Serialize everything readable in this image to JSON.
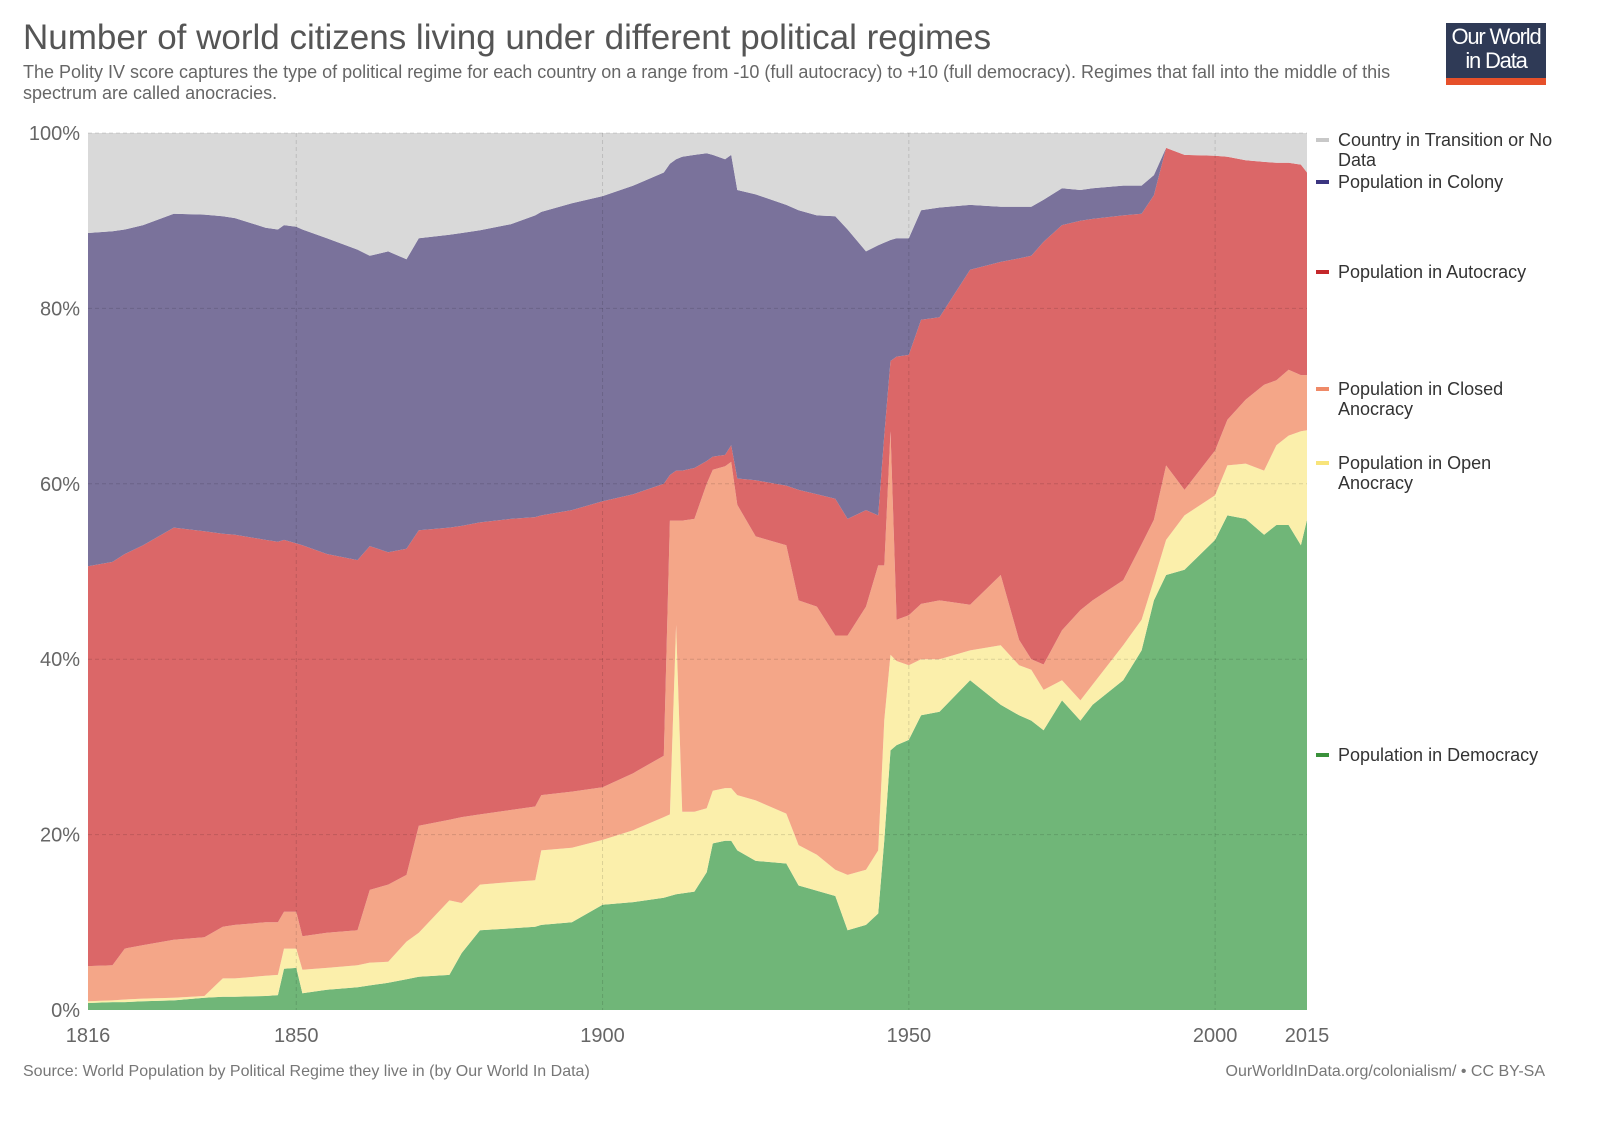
{
  "title": "Number of world citizens living under different political regimes",
  "subtitle": "The Polity IV score captures the type of political regime for each country on a range from -10 (full autocracy) to +10 (full democracy). Regimes that fall into the middle of this spectrum are called anocracies.",
  "logo": {
    "line1": "Our World",
    "line2": "in Data"
  },
  "footer": {
    "source": "Source: World Population by Political Regime they live in (by Our World In Data)",
    "credit": "OurWorldInData.org/colonialism/ • CC BY-SA"
  },
  "chart_data": {
    "type": "area",
    "stacked": true,
    "unit": "%",
    "xlim": [
      1816,
      2015
    ],
    "ylim": [
      0,
      100
    ],
    "x_ticks": [
      "1816",
      "1850",
      "1900",
      "1950",
      "2000",
      "2015"
    ],
    "y_ticks": [
      "0%",
      "20%",
      "40%",
      "60%",
      "80%",
      "100%"
    ],
    "grid": true,
    "legend_position": "right",
    "x": [
      1816,
      1820,
      1822,
      1825,
      1830,
      1835,
      1838,
      1840,
      1845,
      1847,
      1848,
      1850,
      1851,
      1855,
      1860,
      1862,
      1865,
      1868,
      1870,
      1875,
      1877,
      1880,
      1885,
      1889,
      1890,
      1895,
      1900,
      1905,
      1910,
      1911,
      1912,
      1913,
      1915,
      1917,
      1918,
      1920,
      1921,
      1922,
      1925,
      1930,
      1932,
      1935,
      1938,
      1940,
      1943,
      1945,
      1946,
      1947,
      1948,
      1950,
      1952,
      1955,
      1960,
      1965,
      1968,
      1970,
      1972,
      1975,
      1978,
      1980,
      1985,
      1988,
      1990,
      1992,
      1995,
      2000,
      2002,
      2005,
      2008,
      2010,
      2012,
      2014,
      2015
    ],
    "series": [
      {
        "name": "Population in Democracy",
        "color": "#70b678",
        "legend_color": "#3a913b",
        "values": [
          0.8,
          0.9,
          0.9,
          1.0,
          1.1,
          1.4,
          1.5,
          1.5,
          1.6,
          1.7,
          4.7,
          4.8,
          1.9,
          2.3,
          2.6,
          2.8,
          3.1,
          3.5,
          3.8,
          4.0,
          6.5,
          9.1,
          9.3,
          9.5,
          9.7,
          10.0,
          12.0,
          12.3,
          12.8,
          13.0,
          13.2,
          13.3,
          13.5,
          15.7,
          19.0,
          19.3,
          19.3,
          18.2,
          17.0,
          16.7,
          14.2,
          13.6,
          13.0,
          9.1,
          9.7,
          11.0,
          19.4,
          29.6,
          30.2,
          30.8,
          33.6,
          34.0,
          37.6,
          34.8,
          33.6,
          33.0,
          31.9,
          35.3,
          33.0,
          34.8,
          37.6,
          41.0,
          46.7,
          49.6,
          50.2,
          53.6,
          56.4,
          56.0,
          54.2,
          55.3,
          55.3,
          53.0,
          55.9
        ]
      },
      {
        "name": "Population in Open Anocracy",
        "color": "#fbefab",
        "legend_color": "#f8e47a",
        "values": [
          0.2,
          0.2,
          0.3,
          0.3,
          0.3,
          0.2,
          2.1,
          2.1,
          2.3,
          2.3,
          2.3,
          2.2,
          2.7,
          2.5,
          2.5,
          2.6,
          2.4,
          4.3,
          5.0,
          8.5,
          5.7,
          5.2,
          5.3,
          5.3,
          8.5,
          8.5,
          7.4,
          8.2,
          9.2,
          9.3,
          30.7,
          9.3,
          9.1,
          7.3,
          6.0,
          6.0,
          6.0,
          6.3,
          6.9,
          5.7,
          4.6,
          4.1,
          3.0,
          6.3,
          6.3,
          7.2,
          13.7,
          10.9,
          9.6,
          8.5,
          6.4,
          6.0,
          3.4,
          6.8,
          5.7,
          5.8,
          4.6,
          2.3,
          2.3,
          2.3,
          4.0,
          3.5,
          2.3,
          4.0,
          6.2,
          5.1,
          5.7,
          6.3,
          7.3,
          9.1,
          10.2,
          13.0,
          10.2
        ]
      },
      {
        "name": "Population in Closed Anocracy",
        "color": "#f4a688",
        "legend_color": "#ef8a68",
        "values": [
          4.0,
          4.0,
          5.8,
          6.1,
          6.6,
          6.7,
          5.9,
          6.1,
          6.1,
          6.0,
          4.2,
          4.2,
          3.8,
          4.0,
          4.0,
          8.3,
          8.8,
          7.6,
          12.2,
          9.2,
          9.8,
          8.0,
          8.2,
          8.4,
          6.3,
          6.4,
          6.0,
          6.5,
          7.0,
          33.5,
          11.9,
          33.2,
          33.4,
          37.0,
          36.6,
          36.7,
          37.2,
          33.1,
          30.1,
          30.6,
          27.9,
          28.3,
          26.7,
          27.3,
          30.0,
          32.5,
          17.6,
          25.5,
          4.7,
          5.7,
          6.3,
          6.7,
          5.2,
          8.0,
          2.9,
          1.2,
          2.9,
          5.7,
          10.3,
          9.6,
          7.4,
          8.6,
          6.9,
          8.5,
          2.9,
          5.1,
          5.2,
          7.3,
          9.8,
          7.4,
          7.5,
          6.4,
          6.3
        ]
      },
      {
        "name": "Population in Autocracy",
        "color": "#db6768",
        "legend_color": "#c4282b",
        "values": [
          45.6,
          46.0,
          45.0,
          45.6,
          47.0,
          46.3,
          44.8,
          44.5,
          43.6,
          43.4,
          42.4,
          42.0,
          44.6,
          43.2,
          42.2,
          39.2,
          37.9,
          37.2,
          33.7,
          33.3,
          33.2,
          33.3,
          33.2,
          33.0,
          31.9,
          32.1,
          32.6,
          31.8,
          31.0,
          5.2,
          5.7,
          5.7,
          5.8,
          2.6,
          1.5,
          1.3,
          1.9,
          3.0,
          6.4,
          6.8,
          12.6,
          12.8,
          15.6,
          13.3,
          11.0,
          5.7,
          14.9,
          8.0,
          30.0,
          29.7,
          32.4,
          32.3,
          38.2,
          35.7,
          43.5,
          46.0,
          48.2,
          46.2,
          44.4,
          43.5,
          41.6,
          37.7,
          37.0,
          36.2,
          38.2,
          33.6,
          30.0,
          27.3,
          25.4,
          24.8,
          23.6,
          24.0,
          23.1
        ]
      },
      {
        "name": "Population in Colony",
        "color": "#7a729b",
        "legend_color": "#3b3580",
        "values": [
          38.0,
          37.7,
          37.0,
          36.5,
          35.8,
          36.1,
          36.2,
          36.1,
          35.6,
          35.6,
          35.9,
          36.1,
          36.0,
          36.0,
          35.4,
          33.1,
          34.3,
          33.0,
          33.3,
          33.4,
          33.4,
          33.3,
          33.6,
          34.4,
          34.6,
          35.0,
          34.8,
          35.2,
          35.5,
          35.5,
          35.5,
          35.8,
          35.7,
          35.1,
          34.4,
          33.7,
          33.1,
          32.9,
          32.6,
          32.0,
          31.9,
          31.8,
          32.2,
          33.0,
          29.5,
          30.8,
          21.9,
          13.8,
          13.5,
          13.3,
          12.5,
          12.5,
          7.4,
          6.3,
          5.9,
          5.6,
          4.8,
          4.2,
          3.5,
          3.5,
          3.4,
          3.2,
          2.3,
          0,
          0,
          0,
          0,
          0,
          0,
          0,
          0,
          0,
          0
        ]
      },
      {
        "name": "Country in Transition or No Data",
        "color": "#d9d9d9",
        "legend_color": "#c8c8c8",
        "values": [
          11.4,
          11.2,
          11.0,
          10.5,
          9.2,
          9.3,
          9.5,
          9.7,
          10.8,
          11.0,
          10.5,
          10.7,
          11.0,
          12.0,
          13.3,
          14.0,
          13.5,
          14.4,
          12.0,
          11.6,
          11.4,
          11.1,
          10.4,
          9.4,
          9.0,
          8.0,
          7.2,
          6.0,
          4.5,
          3.5,
          3.0,
          2.7,
          2.5,
          2.3,
          2.5,
          3.0,
          2.5,
          6.5,
          7.0,
          8.2,
          8.8,
          9.4,
          9.5,
          11.0,
          13.5,
          12.8,
          12.5,
          12.2,
          12.0,
          12.0,
          8.8,
          8.5,
          8.2,
          8.4,
          8.4,
          8.4,
          7.6,
          6.3,
          6.5,
          6.3,
          6.0,
          6.0,
          4.8,
          1.7,
          2.5,
          2.6,
          2.7,
          3.1,
          3.3,
          3.4,
          3.4,
          3.6,
          4.5
        ]
      }
    ]
  }
}
